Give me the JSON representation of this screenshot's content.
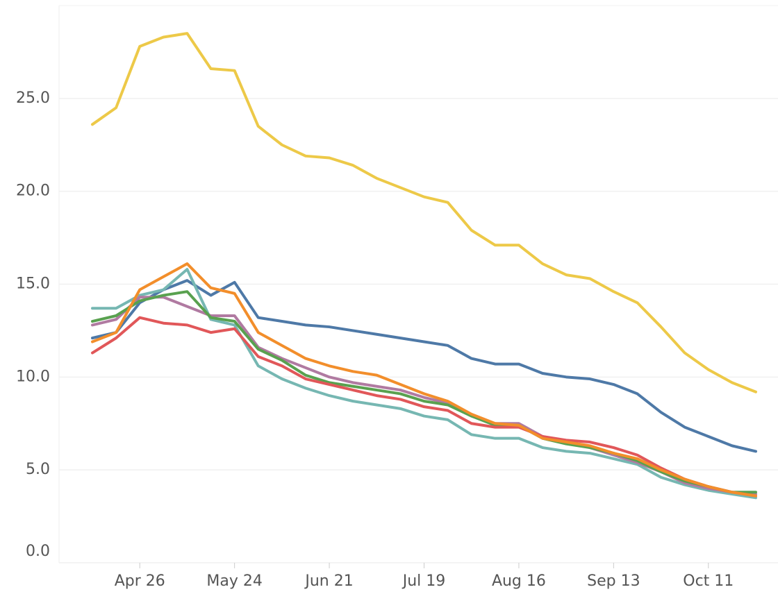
{
  "chart_data": {
    "type": "line",
    "categories": [
      null,
      null,
      "Apr 26",
      null,
      null,
      null,
      "May 24",
      null,
      null,
      null,
      "Jun 21",
      null,
      null,
      null,
      "Jul 19",
      null,
      null,
      null,
      "Aug 16",
      null,
      null,
      null,
      "Sep 13",
      null,
      null,
      null,
      "Oct 11",
      null,
      null
    ],
    "series": [
      {
        "color": "#edc948",
        "values": [
          23.6,
          24.5,
          27.8,
          28.3,
          28.5,
          26.6,
          26.5,
          23.5,
          22.5,
          21.9,
          21.8,
          21.4,
          20.7,
          20.2,
          19.7,
          19.4,
          17.9,
          17.1,
          17.1,
          16.1,
          15.5,
          15.3,
          14.6,
          14.0,
          12.7,
          11.3,
          10.4,
          9.7,
          9.2
        ]
      },
      {
        "color": "#4e79a7",
        "values": [
          12.1,
          12.4,
          14.0,
          14.7,
          15.2,
          14.4,
          15.1,
          13.2,
          13.0,
          12.8,
          12.7,
          12.5,
          12.3,
          12.1,
          11.9,
          11.7,
          11.0,
          10.7,
          10.7,
          10.2,
          10.0,
          9.9,
          9.6,
          9.1,
          8.1,
          7.3,
          6.8,
          6.3,
          6.0
        ]
      },
      {
        "color": "#76b7b2",
        "values": [
          13.7,
          13.7,
          14.4,
          14.7,
          15.8,
          13.1,
          12.8,
          10.6,
          9.9,
          9.4,
          9.0,
          8.7,
          8.5,
          8.3,
          7.9,
          7.7,
          6.9,
          6.7,
          6.7,
          6.2,
          6.0,
          5.9,
          5.6,
          5.3,
          4.6,
          4.2,
          3.9,
          3.7,
          3.5
        ]
      },
      {
        "color": "#b07aa1",
        "values": [
          12.8,
          13.1,
          14.3,
          14.3,
          13.8,
          13.3,
          13.3,
          11.6,
          11.0,
          10.5,
          10.0,
          9.7,
          9.5,
          9.3,
          8.9,
          8.6,
          7.9,
          7.5,
          7.5,
          6.8,
          6.5,
          6.2,
          5.8,
          5.4,
          4.9,
          4.3,
          4.0,
          3.8,
          3.7
        ]
      },
      {
        "color": "#59a14f",
        "values": [
          13.0,
          13.3,
          14.1,
          14.4,
          14.6,
          13.2,
          13.0,
          11.5,
          10.9,
          10.1,
          9.7,
          9.5,
          9.3,
          9.1,
          8.7,
          8.5,
          7.9,
          7.4,
          7.4,
          6.7,
          6.4,
          6.2,
          5.9,
          5.5,
          4.9,
          4.4,
          4.1,
          3.8,
          3.8
        ]
      },
      {
        "color": "#e15759",
        "values": [
          11.3,
          12.1,
          13.2,
          12.9,
          12.8,
          12.4,
          12.6,
          11.1,
          10.6,
          9.9,
          9.6,
          9.3,
          9.0,
          8.8,
          8.4,
          8.2,
          7.5,
          7.3,
          7.3,
          6.8,
          6.6,
          6.5,
          6.2,
          5.8,
          5.1,
          4.5,
          4.1,
          3.8,
          3.6
        ]
      },
      {
        "color": "#f28e2b",
        "values": [
          11.9,
          12.4,
          14.7,
          15.4,
          16.1,
          14.8,
          14.5,
          12.4,
          11.7,
          11.0,
          10.6,
          10.3,
          10.1,
          9.6,
          9.1,
          8.7,
          8.0,
          7.5,
          7.4,
          6.7,
          6.5,
          6.3,
          5.9,
          5.6,
          5.0,
          4.5,
          4.1,
          3.8,
          3.6
        ]
      }
    ],
    "ylim": [
      0,
      30
    ],
    "yticks": [
      {
        "value": 0,
        "label": "0.0"
      },
      {
        "value": 5,
        "label": "5.0"
      },
      {
        "value": 10,
        "label": "10.0"
      },
      {
        "value": 15,
        "label": "15.0"
      },
      {
        "value": 20,
        "label": "20.0"
      },
      {
        "value": 25,
        "label": "25.0"
      }
    ],
    "grid": true
  }
}
